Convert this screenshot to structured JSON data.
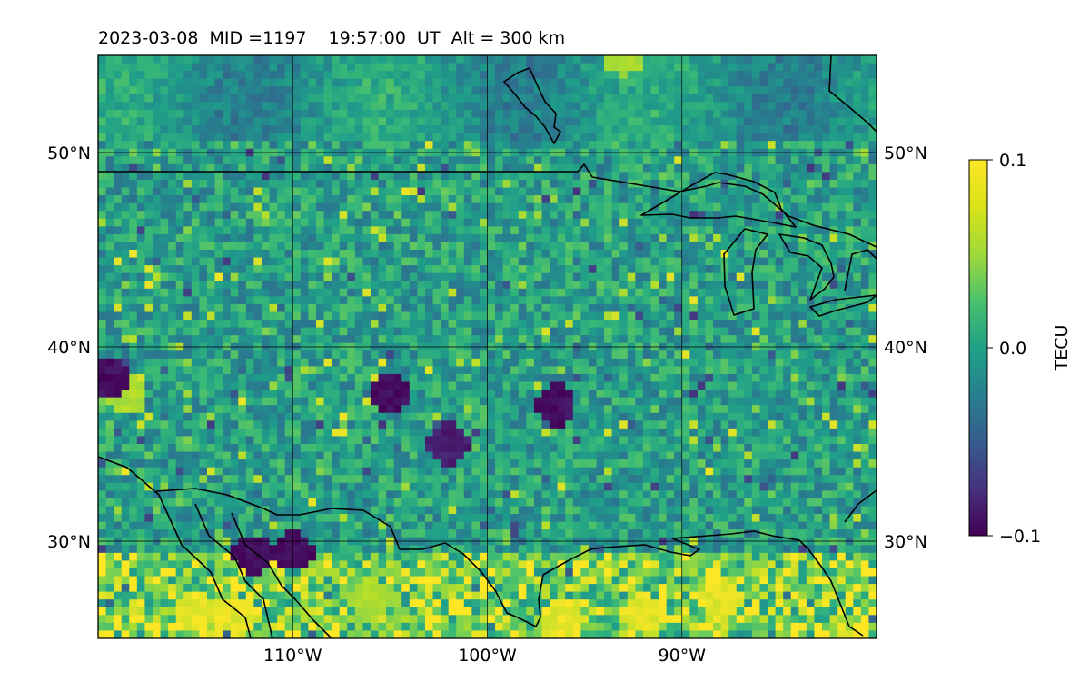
{
  "chart_data": {
    "type": "heatmap",
    "title": "2023-03-08  MID =1197    19:57:00  UT  Alt = 300 km",
    "xlim": [
      -120,
      -80
    ],
    "ylim": [
      25,
      55
    ],
    "x_ticks": [
      {
        "value": -110,
        "label": "110°W"
      },
      {
        "value": -100,
        "label": "100°W"
      },
      {
        "value": -90,
        "label": "90°W"
      }
    ],
    "y_ticks": [
      {
        "value": 50,
        "label": "50°N"
      },
      {
        "value": 40,
        "label": "40°N"
      },
      {
        "value": 30,
        "label": "30°N"
      }
    ],
    "grid": true,
    "colorbar": {
      "label": "TECU",
      "colormap": "viridis",
      "range": [
        -0.1,
        0.1
      ],
      "ticks": [
        {
          "value": 0.1,
          "label": "0.1"
        },
        {
          "value": 0.0,
          "label": "0.0"
        },
        {
          "value": -0.1,
          "label": "−0.1"
        }
      ]
    },
    "field_description": "Perturbation field on ~0.4° cells; mostly near 0.0 with positive (>0.08) clusters in south near 25-28°N and isolated negative cells",
    "hotspots": [
      {
        "lon": -115,
        "lat": 26.5,
        "value": 0.1
      },
      {
        "lon": -113,
        "lat": 26.2,
        "value": 0.1
      },
      {
        "lon": -96,
        "lat": 26.0,
        "value": 0.1
      },
      {
        "lon": -92,
        "lat": 26.3,
        "value": 0.1
      },
      {
        "lon": -88,
        "lat": 27.0,
        "value": 0.1
      },
      {
        "lon": -106,
        "lat": 27.0,
        "value": 0.08
      },
      {
        "lon": -118.5,
        "lat": 37.5,
        "value": 0.08
      },
      {
        "lon": -93,
        "lat": 55.0,
        "value": 0.08
      },
      {
        "lon": -112,
        "lat": 29.3,
        "value": -0.1
      },
      {
        "lon": -110,
        "lat": 29.5,
        "value": -0.1
      },
      {
        "lon": -119.5,
        "lat": 38.5,
        "value": -0.1
      },
      {
        "lon": -105,
        "lat": 37.5,
        "value": -0.1
      },
      {
        "lon": -96.5,
        "lat": 37.0,
        "value": -0.1
      },
      {
        "lon": -102,
        "lat": 35.0,
        "value": -0.09
      }
    ],
    "overlays": [
      "coastlines",
      "international borders"
    ]
  },
  "colors": {
    "viridis_stops": [
      "#440154",
      "#3b528b",
      "#21918c",
      "#5ec962",
      "#fde725"
    ]
  }
}
